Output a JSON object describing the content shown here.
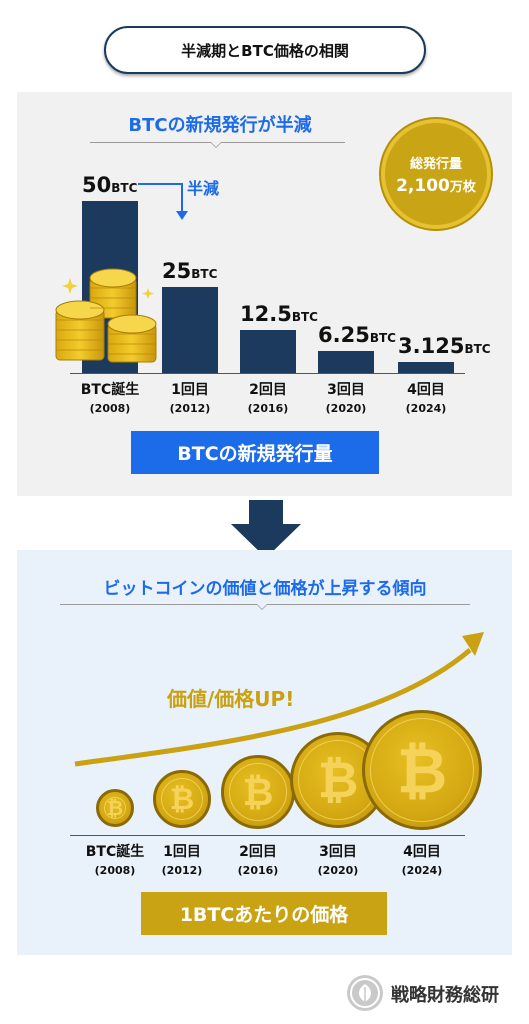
{
  "title": "半減期とBTC価格の相関",
  "top_section": {
    "heading": "BTCの新規発行が半減",
    "half_label": "半減",
    "total_coin": {
      "line1": "総発行量",
      "amount": "2,100",
      "unit": "万枚"
    },
    "badge": "BTCの新規発行量"
  },
  "bottom_section": {
    "heading": "ビットコインの価値と価格が上昇する傾向",
    "up_label": "価値/価格UP!",
    "badge": "1BTCあたりの価格",
    "labels": [
      {
        "name": "BTC誕生",
        "year": "(2008)"
      },
      {
        "name": "1回目",
        "year": "(2012)"
      },
      {
        "name": "2回目",
        "year": "(2016)"
      },
      {
        "name": "3回目",
        "year": "(2020)"
      },
      {
        "name": "4回目",
        "year": "(2024)"
      }
    ],
    "coin_symbol": "₿"
  },
  "footer": {
    "brand": "戦略財務総研"
  },
  "colors": {
    "navy": "#1b3a5e",
    "blue": "#1c6be8",
    "gold": "#c9a111",
    "gold_badge": "#caa315"
  },
  "chart_data": {
    "type": "bar",
    "categories": [
      "BTC誕生 (2008)",
      "1回目 (2012)",
      "2回目 (2016)",
      "3回目 (2020)",
      "4回目 (2024)"
    ],
    "values": [
      50,
      25,
      12.5,
      6.25,
      3.125
    ],
    "value_labels": [
      "50",
      "25",
      "12.5",
      "6.25",
      "3.125"
    ],
    "unit": "BTC",
    "title": "BTCの新規発行が半減",
    "xlabel": "",
    "ylabel": "",
    "ylim": [
      0,
      50
    ],
    "grid": false
  }
}
